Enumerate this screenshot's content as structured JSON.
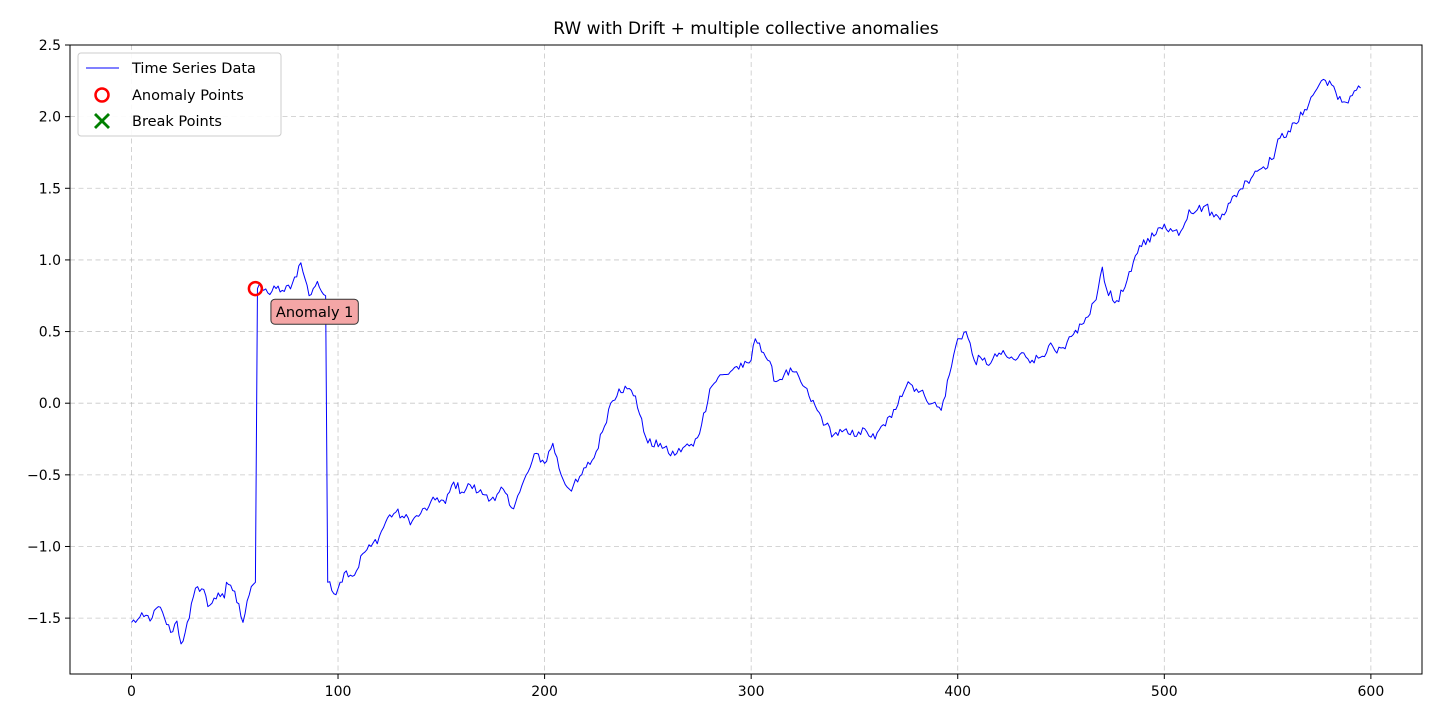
{
  "chart_data": {
    "type": "line",
    "title": "RW with Drift + multiple collective anomalies",
    "xlabel": "",
    "ylabel": "",
    "xlim": [
      -29.75,
      624.75
    ],
    "ylim": [
      -1.89,
      2.5
    ],
    "xticks": [
      0,
      100,
      200,
      300,
      400,
      500,
      600
    ],
    "xtick_labels": [
      "0",
      "100",
      "200",
      "300",
      "400",
      "500",
      "600"
    ],
    "yticks": [
      -1.5,
      -1.0,
      -0.5,
      0.0,
      0.5,
      1.0,
      1.5,
      2.0,
      2.5
    ],
    "ytick_labels": [
      "−1.5",
      "−1.0",
      "−0.5",
      "0.0",
      "0.5",
      "1.0",
      "1.5",
      "2.0",
      "2.5"
    ],
    "grid": true,
    "legend_position": "upper-left",
    "legend": [
      "Time Series Data",
      "Anomaly Points",
      "Break Points"
    ],
    "series": [
      {
        "name": "Time Series Data",
        "color": "#0000ff",
        "keypoints": [
          [
            0,
            -1.53
          ],
          [
            3,
            -1.51
          ],
          [
            6,
            -1.49
          ],
          [
            10,
            -1.5
          ],
          [
            13,
            -1.42
          ],
          [
            16,
            -1.5
          ],
          [
            19,
            -1.6
          ],
          [
            22,
            -1.52
          ],
          [
            24,
            -1.68
          ],
          [
            26,
            -1.6
          ],
          [
            28,
            -1.5
          ],
          [
            30,
            -1.35
          ],
          [
            32,
            -1.28
          ],
          [
            35,
            -1.3
          ],
          [
            37,
            -1.42
          ],
          [
            40,
            -1.36
          ],
          [
            43,
            -1.35
          ],
          [
            45,
            -1.36
          ],
          [
            46,
            -1.25
          ],
          [
            48,
            -1.27
          ],
          [
            52,
            -1.4
          ],
          [
            54,
            -1.53
          ],
          [
            56,
            -1.38
          ],
          [
            58,
            -1.28
          ],
          [
            60,
            -1.25
          ],
          [
            61,
            0.8
          ],
          [
            63,
            0.8
          ],
          [
            66,
            0.77
          ],
          [
            70,
            0.8
          ],
          [
            74,
            0.78
          ],
          [
            78,
            0.84
          ],
          [
            82,
            0.98
          ],
          [
            84,
            0.87
          ],
          [
            86,
            0.75
          ],
          [
            88,
            0.8
          ],
          [
            90,
            0.85
          ],
          [
            92,
            0.78
          ],
          [
            94,
            0.75
          ],
          [
            95,
            -1.25
          ],
          [
            98,
            -1.33
          ],
          [
            101,
            -1.25
          ],
          [
            104,
            -1.17
          ],
          [
            108,
            -1.2
          ],
          [
            112,
            -1.05
          ],
          [
            116,
            -1.0
          ],
          [
            120,
            -0.93
          ],
          [
            124,
            -0.8
          ],
          [
            128,
            -0.76
          ],
          [
            132,
            -0.8
          ],
          [
            136,
            -0.82
          ],
          [
            140,
            -0.77
          ],
          [
            144,
            -0.72
          ],
          [
            148,
            -0.66
          ],
          [
            152,
            -0.7
          ],
          [
            156,
            -0.55
          ],
          [
            160,
            -0.62
          ],
          [
            164,
            -0.57
          ],
          [
            168,
            -0.62
          ],
          [
            172,
            -0.64
          ],
          [
            176,
            -0.68
          ],
          [
            180,
            -0.6
          ],
          [
            184,
            -0.73
          ],
          [
            188,
            -0.62
          ],
          [
            192,
            -0.48
          ],
          [
            196,
            -0.35
          ],
          [
            200,
            -0.42
          ],
          [
            204,
            -0.28
          ],
          [
            208,
            -0.5
          ],
          [
            212,
            -0.6
          ],
          [
            216,
            -0.55
          ],
          [
            220,
            -0.45
          ],
          [
            224,
            -0.38
          ],
          [
            228,
            -0.2
          ],
          [
            232,
            0.0
          ],
          [
            236,
            0.1
          ],
          [
            240,
            0.1
          ],
          [
            244,
            0.05
          ],
          [
            248,
            -0.2
          ],
          [
            252,
            -0.3
          ],
          [
            256,
            -0.28
          ],
          [
            260,
            -0.35
          ],
          [
            264,
            -0.35
          ],
          [
            268,
            -0.3
          ],
          [
            272,
            -0.3
          ],
          [
            276,
            -0.15
          ],
          [
            280,
            0.1
          ],
          [
            284,
            0.18
          ],
          [
            288,
            0.2
          ],
          [
            292,
            0.25
          ],
          [
            296,
            0.25
          ],
          [
            300,
            0.3
          ],
          [
            302,
            0.45
          ],
          [
            304,
            0.42
          ],
          [
            308,
            0.3
          ],
          [
            312,
            0.15
          ],
          [
            316,
            0.2
          ],
          [
            320,
            0.22
          ],
          [
            324,
            0.15
          ],
          [
            328,
            0.05
          ],
          [
            332,
            -0.05
          ],
          [
            336,
            -0.15
          ],
          [
            340,
            -0.22
          ],
          [
            344,
            -0.2
          ],
          [
            348,
            -0.22
          ],
          [
            352,
            -0.2
          ],
          [
            356,
            -0.2
          ],
          [
            360,
            -0.25
          ],
          [
            364,
            -0.15
          ],
          [
            368,
            -0.1
          ],
          [
            372,
            0.05
          ],
          [
            376,
            0.15
          ],
          [
            380,
            0.1
          ],
          [
            384,
            0.05
          ],
          [
            388,
            0.0
          ],
          [
            392,
            -0.05
          ],
          [
            396,
            0.2
          ],
          [
            400,
            0.45
          ],
          [
            404,
            0.5
          ],
          [
            408,
            0.3
          ],
          [
            412,
            0.3
          ],
          [
            416,
            0.28
          ],
          [
            420,
            0.35
          ],
          [
            424,
            0.32
          ],
          [
            428,
            0.3
          ],
          [
            432,
            0.35
          ],
          [
            436,
            0.3
          ],
          [
            440,
            0.32
          ],
          [
            444,
            0.4
          ],
          [
            448,
            0.35
          ],
          [
            452,
            0.38
          ],
          [
            456,
            0.48
          ],
          [
            460,
            0.55
          ],
          [
            464,
            0.62
          ],
          [
            468,
            0.8
          ],
          [
            470,
            0.95
          ],
          [
            472,
            0.8
          ],
          [
            476,
            0.7
          ],
          [
            480,
            0.78
          ],
          [
            484,
            0.92
          ],
          [
            488,
            1.1
          ],
          [
            492,
            1.15
          ],
          [
            496,
            1.18
          ],
          [
            500,
            1.25
          ],
          [
            504,
            1.2
          ],
          [
            508,
            1.2
          ],
          [
            512,
            1.35
          ],
          [
            516,
            1.35
          ],
          [
            520,
            1.38
          ],
          [
            524,
            1.3
          ],
          [
            528,
            1.32
          ],
          [
            532,
            1.4
          ],
          [
            536,
            1.48
          ],
          [
            540,
            1.55
          ],
          [
            544,
            1.62
          ],
          [
            548,
            1.65
          ],
          [
            552,
            1.7
          ],
          [
            556,
            1.85
          ],
          [
            560,
            1.9
          ],
          [
            564,
            1.95
          ],
          [
            568,
            2.05
          ],
          [
            572,
            2.15
          ],
          [
            576,
            2.25
          ],
          [
            580,
            2.25
          ],
          [
            584,
            2.12
          ],
          [
            588,
            2.1
          ],
          [
            592,
            2.18
          ],
          [
            595,
            2.2
          ]
        ]
      }
    ],
    "anomaly_points": [
      {
        "name": "Anomaly Points",
        "color": "#ff0000",
        "x": 60,
        "y": 0.8
      }
    ],
    "break_points": {
      "name": "Break Points",
      "color": "#008000",
      "x": [],
      "y": []
    },
    "annotations": [
      {
        "text": "Anomaly 1",
        "x": 68,
        "y": 0.6,
        "bg": "#f4a6a6"
      }
    ]
  }
}
